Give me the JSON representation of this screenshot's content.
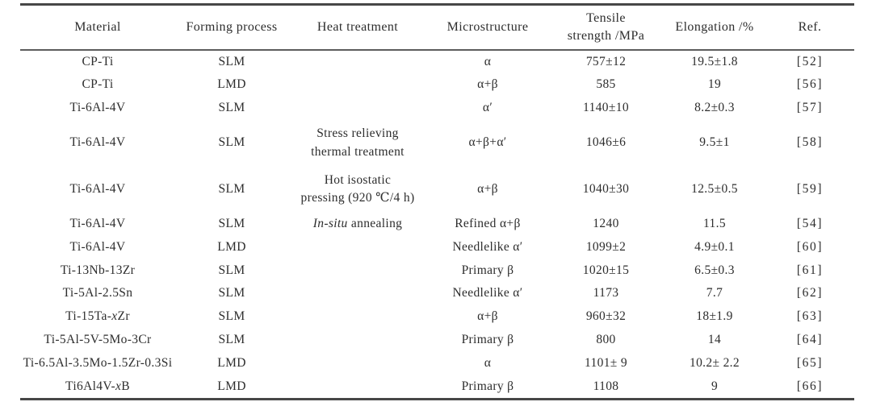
{
  "page": {
    "background_color": "#ffffff",
    "ink_color": "#2d2d2d",
    "rule_color": "#474747"
  },
  "table": {
    "columns": [
      {
        "key": "material",
        "label": "Material"
      },
      {
        "key": "forming-process",
        "label": "Forming process"
      },
      {
        "key": "heat-treatment",
        "label": "Heat treatment"
      },
      {
        "key": "microstructure",
        "label": "Microstructure"
      },
      {
        "key": "tensile-strength",
        "label": "Tensile\nstrength /MPa"
      },
      {
        "key": "elongation",
        "label": "Elongation /%"
      },
      {
        "key": "ref",
        "label": "Ref."
      }
    ],
    "rows": [
      {
        "tall": false,
        "cells": [
          "CP-Ti",
          "SLM",
          "",
          "α",
          "757±12",
          "19.5±1.8",
          "[52]"
        ]
      },
      {
        "tall": false,
        "cells": [
          "CP-Ti",
          "LMD",
          "",
          "α+β",
          "585",
          "19",
          "[56]"
        ]
      },
      {
        "tall": false,
        "cells": [
          "Ti-6Al-4V",
          "SLM",
          "",
          "α′",
          "1140±10",
          "8.2±0.3",
          "[57]"
        ]
      },
      {
        "tall": true,
        "cells": [
          "Ti-6Al-4V",
          "SLM",
          "Stress relieving\nthermal treatment",
          "α+β+α′",
          "1046±6",
          "9.5±1",
          "[58]"
        ]
      },
      {
        "tall": true,
        "cells": [
          "Ti-6Al-4V",
          "SLM",
          "Hot isostatic\npressing (920 ℃/4 h)",
          "α+β",
          "1040±30",
          "12.5±0.5",
          "[59]"
        ]
      },
      {
        "tall": false,
        "cells": [
          "Ti-6Al-4V",
          "SLM",
          "*In-situ* annealing",
          "Refined α+β",
          "1240",
          "11.5",
          "[54]"
        ]
      },
      {
        "tall": false,
        "cells": [
          "Ti-6Al-4V",
          "LMD",
          "",
          "Needlelike α′",
          "1099±2",
          "4.9±0.1",
          "[60]"
        ]
      },
      {
        "tall": false,
        "cells": [
          "Ti-13Nb-13Zr",
          "SLM",
          "",
          "Primary β",
          "1020±15",
          "6.5±0.3",
          "[61]"
        ]
      },
      {
        "tall": false,
        "cells": [
          "Ti-5Al-2.5Sn",
          "SLM",
          "",
          "Needlelike α′",
          "1173",
          "7.7",
          "[62]"
        ]
      },
      {
        "tall": false,
        "cells": [
          "Ti-15Ta-*x*Zr",
          "SLM",
          "",
          "α+β",
          "960±32",
          "18±1.9",
          "[63]"
        ]
      },
      {
        "tall": false,
        "cells": [
          "Ti-5Al-5V-5Mo-3Cr",
          "SLM",
          "",
          "Primary β",
          "800",
          "14",
          "[64]"
        ]
      },
      {
        "tall": false,
        "cells": [
          "Ti-6.5Al-3.5Mo-1.5Zr-0.3Si",
          "LMD",
          "",
          "α",
          "1101± 9",
          "10.2± 2.2",
          "[65]"
        ]
      },
      {
        "tall": false,
        "cells": [
          "Ti6Al4V-*x*B",
          "LMD",
          "",
          "Primary β",
          "1108",
          "9",
          "[66]"
        ]
      }
    ]
  }
}
